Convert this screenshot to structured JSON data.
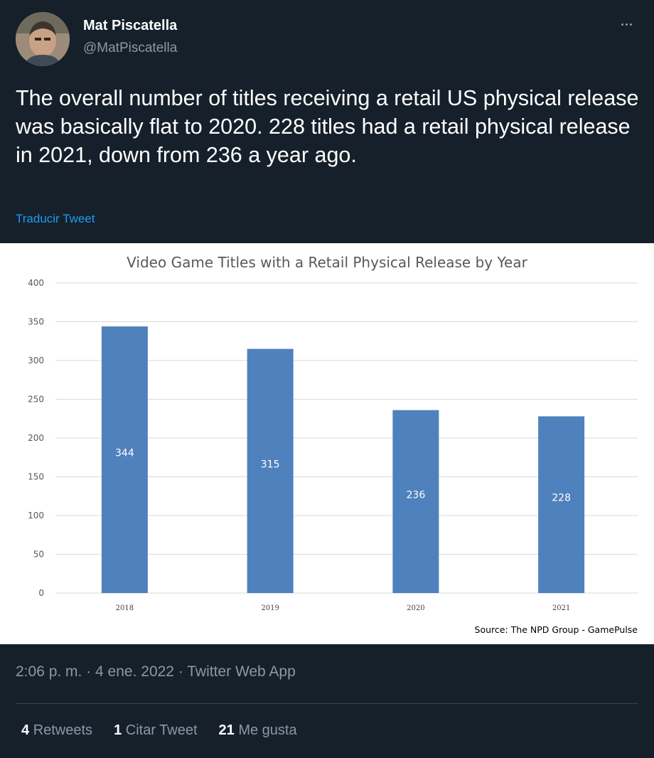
{
  "author": {
    "name": "Mat Piscatella",
    "handle": "@MatPiscatella"
  },
  "tweet": {
    "text": "The overall number of titles receiving a retail US physical release was basically flat to 2020. 228 titles had a retail physical release in 2021, down from 236 a year ago.",
    "translate_label": "Traducir Tweet",
    "meta": "2:06 p. m. · 4 ene. 2022 · Twitter Web App"
  },
  "stats": {
    "retweets_count": "4",
    "retweets_label": "Retweets",
    "quotes_count": "1",
    "quotes_label": "Citar Tweet",
    "likes_count": "21",
    "likes_label": "Me gusta"
  },
  "chart_data": {
    "type": "bar",
    "title": "Video Game Titles with a Retail Physical Release by Year",
    "categories": [
      "2018",
      "2019",
      "2020",
      "2021"
    ],
    "values": [
      344,
      315,
      236,
      228
    ],
    "data_labels": [
      "344",
      "315",
      "236",
      "228"
    ],
    "ylim": [
      0,
      400
    ],
    "yticks": [
      0,
      50,
      100,
      150,
      200,
      250,
      300,
      350,
      400
    ],
    "grid": true,
    "bar_color": "#4f81bd",
    "source": "Source: The NPD Group - GamePulse"
  },
  "colors": {
    "background": "#15202b",
    "link": "#1d9bf0",
    "muted": "#8b98a5"
  },
  "icons": {
    "more": "more-horizontal-icon"
  }
}
